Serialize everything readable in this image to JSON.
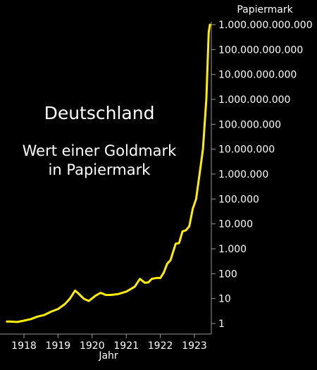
{
  "chart_data": {
    "type": "line",
    "title": "Deutschland",
    "subtitle": [
      "Wert einer Goldmark",
      "in Papiermark"
    ],
    "xlabel": "Jahr",
    "ylabel": "Papiermark",
    "yscale": "log",
    "ylim": [
      1,
      1000000000000
    ],
    "xlim": [
      1917.5,
      1923.5
    ],
    "x_ticks": [
      1918,
      1919,
      1920,
      1921,
      1922,
      1923
    ],
    "x_tick_labels": [
      "1918",
      "1919",
      "1920",
      "1921",
      "1922",
      "1923"
    ],
    "y_ticks": [
      1,
      10,
      100,
      1000,
      10000,
      100000,
      1000000,
      10000000,
      100000000,
      1000000000,
      10000000000,
      100000000000,
      1000000000000
    ],
    "y_tick_labels": [
      "1",
      "10",
      "100",
      "1.000",
      "10.000",
      "100.000",
      "1.000.000",
      "10.000.000",
      "100.000.000",
      "1.000.000.000",
      "10.000.000.000",
      "100.000.000.000",
      "1.000.000.000.000"
    ],
    "grid": false,
    "line_color": "#ffee00",
    "series": [
      {
        "x": [
          1917.5,
          1917.6,
          1917.8,
          1918.0,
          1918.2,
          1918.4,
          1918.6,
          1918.8,
          1919.0,
          1919.2,
          1919.35,
          1919.5,
          1919.6,
          1919.75,
          1919.9,
          1920.1,
          1920.25,
          1920.4,
          1920.55,
          1920.75,
          1921.0,
          1921.25,
          1921.4,
          1921.55,
          1921.65,
          1921.75,
          1921.9,
          1922.0,
          1922.1,
          1922.2,
          1922.3,
          1922.45,
          1922.55,
          1922.65,
          1922.75,
          1922.85,
          1922.95,
          1923.05,
          1923.15,
          1923.25,
          1923.35,
          1923.42,
          1923.47
        ],
        "y": [
          1.2,
          1.2,
          1.15,
          1.3,
          1.5,
          1.9,
          2.2,
          3.0,
          3.8,
          6.0,
          10,
          21,
          16,
          10,
          8,
          13,
          17,
          14,
          14,
          15,
          19,
          30,
          62,
          43,
          45,
          62,
          68,
          67,
          110,
          250,
          350,
          1600,
          1700,
          5000,
          5500,
          8000,
          40000,
          100000,
          1000000,
          10000000,
          1000000000,
          500000000000,
          1000000000000
        ]
      }
    ]
  }
}
